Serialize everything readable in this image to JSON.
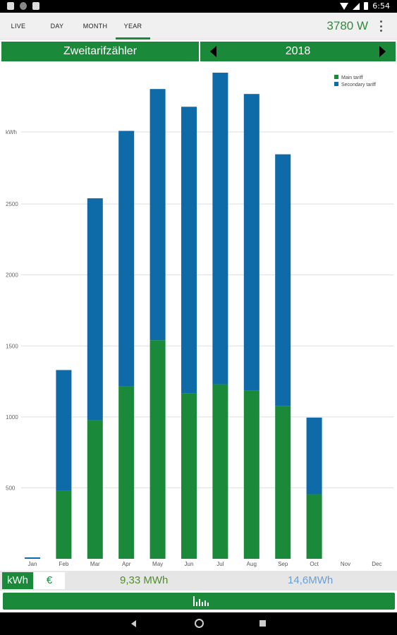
{
  "status_bar": {
    "time": "6:54"
  },
  "tabs": [
    {
      "label": "LIVE"
    },
    {
      "label": "DAY"
    },
    {
      "label": "MONTH"
    },
    {
      "label": "YEAR"
    }
  ],
  "active_tab": "YEAR",
  "current_power": "3780 W",
  "header": {
    "meter_name": "Zweitarifzähler",
    "year": "2018"
  },
  "colors": {
    "brand_green": "#1a8a3a",
    "main_tariff": "#1a8a3a",
    "secondary_tariff": "#0f6aa8"
  },
  "chart_data": {
    "type": "bar",
    "stacked": true,
    "categories": [
      "Jan",
      "Feb",
      "Mar",
      "Apr",
      "May",
      "Jun",
      "Jul",
      "Aug",
      "Sep",
      "Oct",
      "Nov",
      "Dec"
    ],
    "series": [
      {
        "name": "Main tariff",
        "values": [
          0,
          480,
          975,
          1215,
          1540,
          1165,
          1230,
          1185,
          1075,
          455,
          0,
          0
        ]
      },
      {
        "name": "Secondary tariff",
        "values": [
          10,
          850,
          1565,
          1800,
          1770,
          2020,
          2195,
          2090,
          1775,
          540,
          0,
          0
        ]
      }
    ],
    "ylabel": "kWh",
    "yticks": [
      500,
      1000,
      1500,
      2000,
      2500
    ],
    "ylim": [
      0,
      3450
    ],
    "grid": true,
    "legend_position": "top-right"
  },
  "footer": {
    "unit_kwh": "kWh",
    "unit_euro": "€",
    "total_main": "9,33 MWh",
    "total_secondary": "14,6MWh",
    "chart_button_icon": "bar-chart-icon"
  }
}
